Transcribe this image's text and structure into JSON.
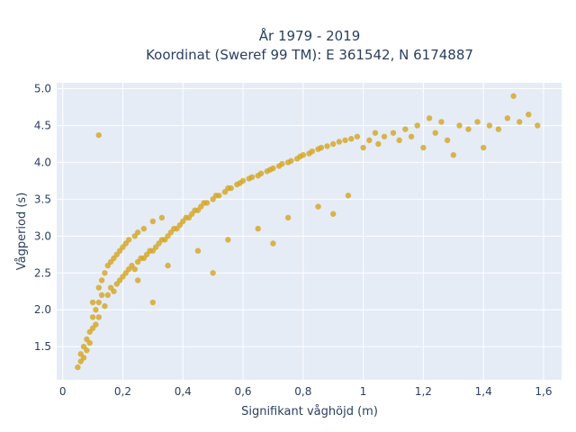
{
  "chart_data": {
    "type": "scatter",
    "title": {
      "line1": "År 1979 - 2019",
      "line2": "Koordinat (Sweref 99 TM): E 361542, N 6174887"
    },
    "xlabel": "Signifikant våghöjd (m)",
    "ylabel": "Vågperiod (s)",
    "xlim": [
      -0.02,
      1.66
    ],
    "ylim": [
      1.05,
      5.08
    ],
    "x_ticks": [
      {
        "value": 0,
        "label": "0"
      },
      {
        "value": 0.2,
        "label": "0,2"
      },
      {
        "value": 0.4,
        "label": "0,4"
      },
      {
        "value": 0.6,
        "label": "0,6"
      },
      {
        "value": 0.8,
        "label": "0,8"
      },
      {
        "value": 1.0,
        "label": "1"
      },
      {
        "value": 1.2,
        "label": "1,2"
      },
      {
        "value": 1.4,
        "label": "1,4"
      },
      {
        "value": 1.6,
        "label": "1,6"
      }
    ],
    "y_ticks": [
      {
        "value": 1.5,
        "label": "1.5"
      },
      {
        "value": 2.0,
        "label": "2.0"
      },
      {
        "value": 2.5,
        "label": "2.5"
      },
      {
        "value": 3.0,
        "label": "3.0"
      },
      {
        "value": 3.5,
        "label": "3.5"
      },
      {
        "value": 4.0,
        "label": "4.0"
      },
      {
        "value": 4.5,
        "label": "4.5"
      },
      {
        "value": 5.0,
        "label": "5.0"
      }
    ],
    "grid": true,
    "marker_color": "#d4a520",
    "plot_bgcolor": "#e5ecf6",
    "series": [
      {
        "x": [
          0.05,
          0.06,
          0.06,
          0.07,
          0.07,
          0.08,
          0.08,
          0.09,
          0.09,
          0.1,
          0.1,
          0.1,
          0.11,
          0.11,
          0.12,
          0.12,
          0.12,
          0.13,
          0.13,
          0.14,
          0.14,
          0.15,
          0.15,
          0.16,
          0.16,
          0.17,
          0.17,
          0.18,
          0.18,
          0.19,
          0.19,
          0.2,
          0.2,
          0.21,
          0.21,
          0.22,
          0.22,
          0.23,
          0.24,
          0.24,
          0.25,
          0.25,
          0.26,
          0.27,
          0.27,
          0.28,
          0.29,
          0.3,
          0.3,
          0.31,
          0.32,
          0.33,
          0.33,
          0.34,
          0.35,
          0.36,
          0.37,
          0.38,
          0.39,
          0.4,
          0.41,
          0.42,
          0.43,
          0.44,
          0.45,
          0.46,
          0.47,
          0.48,
          0.5,
          0.51,
          0.52,
          0.54,
          0.55,
          0.56,
          0.58,
          0.59,
          0.6,
          0.62,
          0.63,
          0.65,
          0.66,
          0.68,
          0.69,
          0.7,
          0.72,
          0.73,
          0.75,
          0.76,
          0.78,
          0.79,
          0.8,
          0.82,
          0.83,
          0.85,
          0.86,
          0.88,
          0.9,
          0.92,
          0.94,
          0.96,
          0.98,
          1.0,
          1.02,
          1.04,
          1.05,
          1.07,
          1.1,
          1.12,
          1.14,
          1.16,
          1.18,
          1.2,
          1.22,
          1.24,
          1.26,
          1.28,
          1.3,
          1.32,
          1.35,
          1.38,
          1.4,
          1.42,
          1.45,
          1.48,
          1.5,
          1.52,
          1.55,
          1.58,
          0.12,
          0.25,
          0.35,
          0.45,
          0.55,
          0.65,
          0.75,
          0.85,
          0.95,
          0.3,
          0.5,
          0.7,
          0.9
        ],
        "y": [
          1.22,
          1.3,
          1.4,
          1.5,
          1.35,
          1.6,
          1.45,
          1.7,
          1.55,
          1.9,
          1.75,
          2.1,
          2.0,
          1.8,
          2.3,
          2.1,
          1.9,
          2.4,
          2.2,
          2.5,
          2.05,
          2.6,
          2.2,
          2.65,
          2.3,
          2.7,
          2.25,
          2.75,
          2.35,
          2.8,
          2.4,
          2.85,
          2.45,
          2.9,
          2.5,
          2.95,
          2.55,
          2.6,
          3.0,
          2.55,
          3.05,
          2.65,
          2.7,
          3.1,
          2.7,
          2.75,
          2.8,
          3.2,
          2.8,
          2.85,
          2.9,
          3.25,
          2.95,
          2.95,
          3.0,
          3.05,
          3.1,
          3.1,
          3.15,
          3.2,
          3.25,
          3.25,
          3.3,
          3.35,
          3.35,
          3.4,
          3.45,
          3.45,
          3.5,
          3.55,
          3.55,
          3.6,
          3.65,
          3.65,
          3.7,
          3.72,
          3.75,
          3.78,
          3.8,
          3.82,
          3.85,
          3.88,
          3.9,
          3.92,
          3.95,
          3.98,
          4.0,
          4.02,
          4.05,
          4.08,
          4.1,
          4.12,
          4.15,
          4.18,
          4.2,
          4.22,
          4.25,
          4.28,
          4.3,
          4.32,
          4.35,
          4.2,
          4.3,
          4.4,
          4.25,
          4.35,
          4.4,
          4.3,
          4.45,
          4.35,
          4.5,
          4.2,
          4.6,
          4.4,
          4.55,
          4.3,
          4.1,
          4.5,
          4.45,
          4.55,
          4.2,
          4.5,
          4.45,
          4.6,
          4.9,
          4.55,
          4.65,
          4.5,
          4.37,
          2.4,
          2.6,
          2.8,
          2.95,
          3.1,
          3.25,
          3.4,
          3.55,
          2.1,
          2.5,
          2.9,
          3.3
        ]
      }
    ]
  }
}
